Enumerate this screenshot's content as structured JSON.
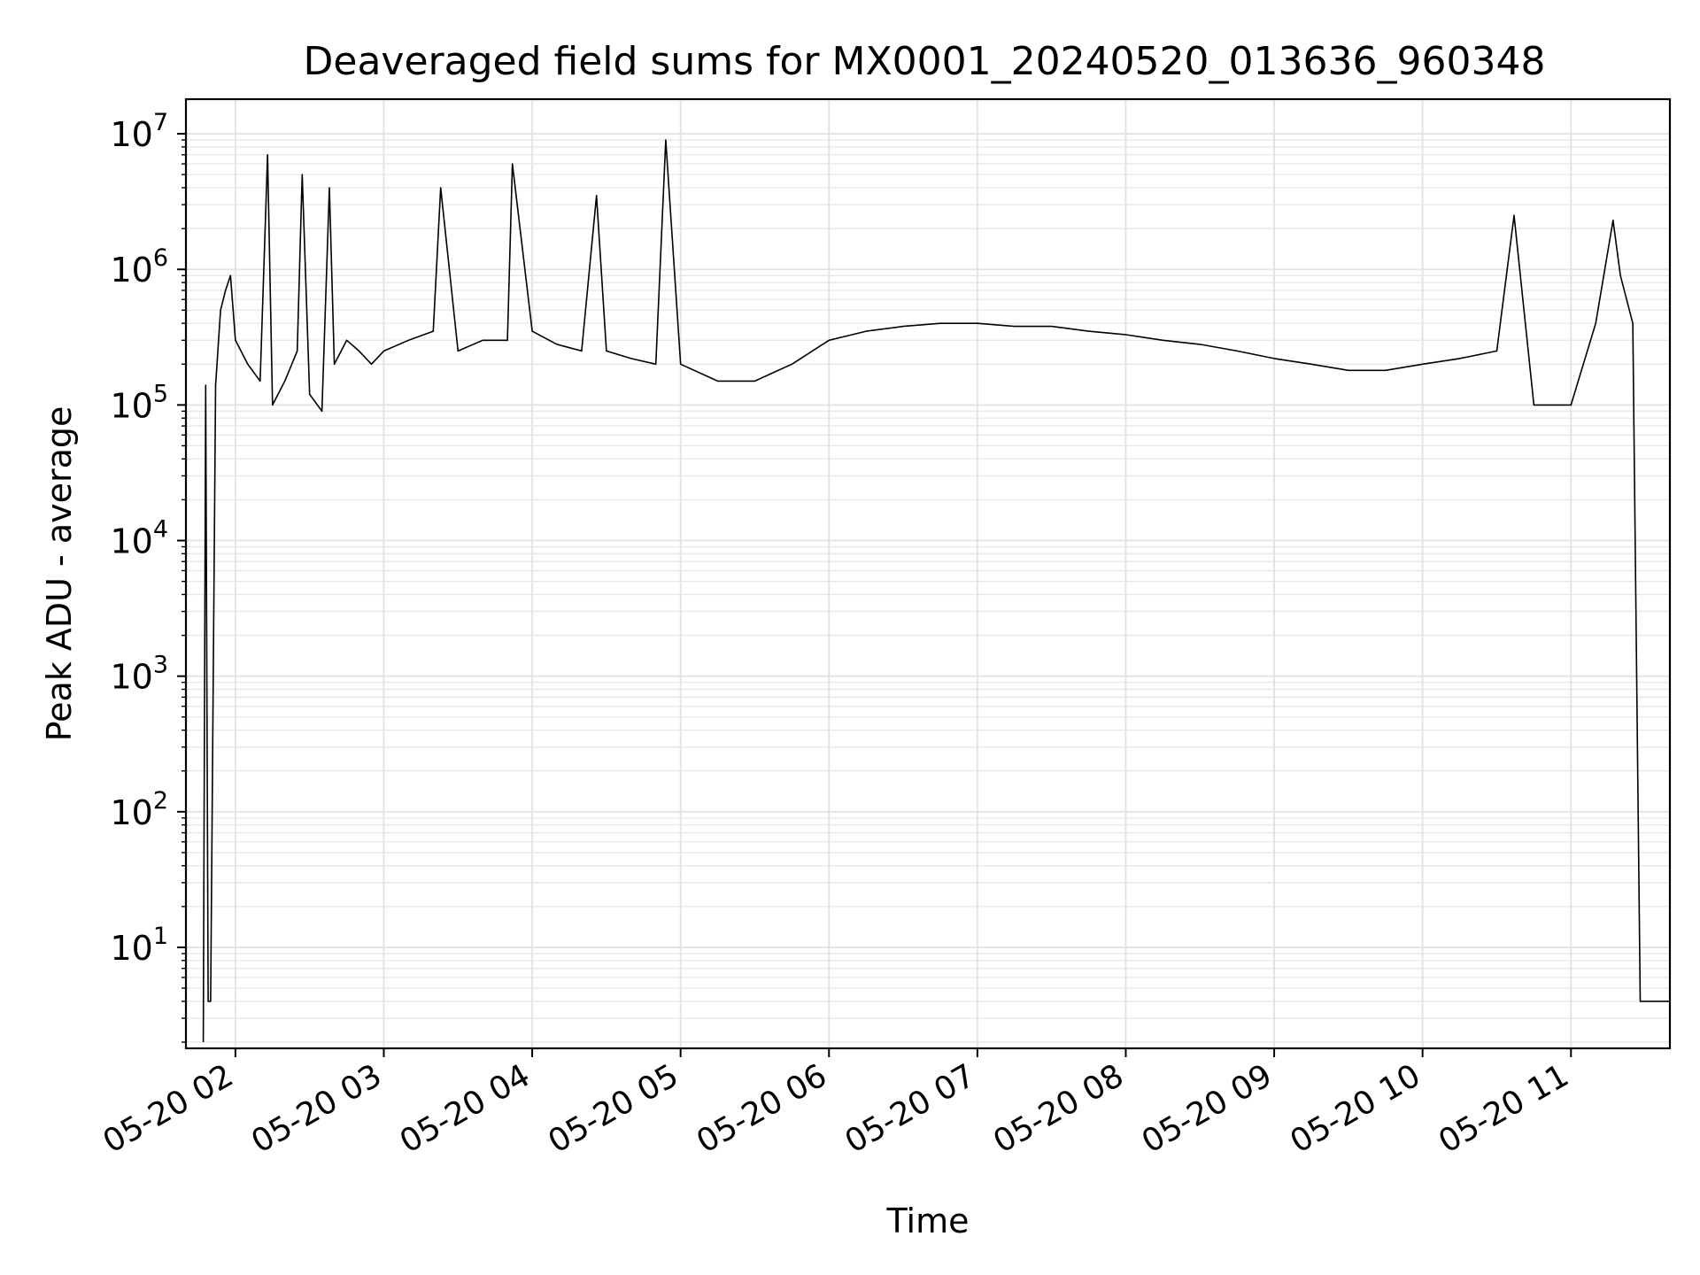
{
  "chart_data": {
    "type": "line",
    "title": "Deaveraged field sums for MX0001_20240520_013636_960348",
    "xlabel": "Time",
    "ylabel": "Peak ADU - average",
    "x_scale": "time",
    "y_scale": "log",
    "xlim": [
      "2024-05-20 01:40",
      "2024-05-20 11:40"
    ],
    "ylim": [
      1.8,
      18000000
    ],
    "grid": true,
    "x_ticks": [
      "2024-05-20 02:00",
      "2024-05-20 03:00",
      "2024-05-20 04:00",
      "2024-05-20 05:00",
      "2024-05-20 06:00",
      "2024-05-20 07:00",
      "2024-05-20 08:00",
      "2024-05-20 09:00",
      "2024-05-20 10:00",
      "2024-05-20 11:00"
    ],
    "x_tick_labels": [
      "05-20 02",
      "05-20 03",
      "05-20 04",
      "05-20 05",
      "05-20 06",
      "05-20 07",
      "05-20 08",
      "05-20 09",
      "05-20 10",
      "05-20 11"
    ],
    "y_ticks": [
      10,
      100,
      1000,
      10000,
      100000,
      1000000,
      10000000
    ],
    "y_tick_bases": [
      "10",
      "10",
      "10",
      "10",
      "10",
      "10",
      "10"
    ],
    "y_tick_exponents": [
      "1",
      "2",
      "3",
      "4",
      "5",
      "6",
      "7"
    ],
    "series": [
      {
        "color": "#000000",
        "x": [
          "2024-05-20 01:47",
          "2024-05-20 01:48",
          "2024-05-20 01:49",
          "2024-05-20 01:50",
          "2024-05-20 01:52",
          "2024-05-20 01:54",
          "2024-05-20 01:56",
          "2024-05-20 01:58",
          "2024-05-20 02:00",
          "2024-05-20 02:05",
          "2024-05-20 02:10",
          "2024-05-20 02:13",
          "2024-05-20 02:15",
          "2024-05-20 02:20",
          "2024-05-20 02:25",
          "2024-05-20 02:27",
          "2024-05-20 02:30",
          "2024-05-20 02:35",
          "2024-05-20 02:38",
          "2024-05-20 02:40",
          "2024-05-20 02:45",
          "2024-05-20 02:50",
          "2024-05-20 02:55",
          "2024-05-20 03:00",
          "2024-05-20 03:10",
          "2024-05-20 03:20",
          "2024-05-20 03:23",
          "2024-05-20 03:30",
          "2024-05-20 03:40",
          "2024-05-20 03:50",
          "2024-05-20 03:52",
          "2024-05-20 04:00",
          "2024-05-20 04:10",
          "2024-05-20 04:20",
          "2024-05-20 04:26",
          "2024-05-20 04:30",
          "2024-05-20 04:40",
          "2024-05-20 04:50",
          "2024-05-20 04:54",
          "2024-05-20 05:00",
          "2024-05-20 05:15",
          "2024-05-20 05:30",
          "2024-05-20 05:45",
          "2024-05-20 06:00",
          "2024-05-20 06:15",
          "2024-05-20 06:30",
          "2024-05-20 06:45",
          "2024-05-20 07:00",
          "2024-05-20 07:15",
          "2024-05-20 07:30",
          "2024-05-20 07:45",
          "2024-05-20 08:00",
          "2024-05-20 08:15",
          "2024-05-20 08:30",
          "2024-05-20 08:45",
          "2024-05-20 09:00",
          "2024-05-20 09:15",
          "2024-05-20 09:30",
          "2024-05-20 09:45",
          "2024-05-20 10:00",
          "2024-05-20 10:15",
          "2024-05-20 10:30",
          "2024-05-20 10:37",
          "2024-05-20 10:45",
          "2024-05-20 11:00",
          "2024-05-20 11:10",
          "2024-05-20 11:17",
          "2024-05-20 11:20",
          "2024-05-20 11:25",
          "2024-05-20 11:28",
          "2024-05-20 11:30",
          "2024-05-20 11:32",
          "2024-05-20 11:40"
        ],
        "y": [
          2,
          140000,
          4,
          4,
          140000,
          500000,
          700000,
          900000,
          300000,
          200000,
          150000,
          7000000,
          100000,
          150000,
          250000,
          5000000,
          120000,
          90000,
          4000000,
          200000,
          300000,
          250000,
          200000,
          250000,
          300000,
          350000,
          4000000,
          250000,
          300000,
          300000,
          6000000,
          350000,
          280000,
          250000,
          3500000,
          250000,
          220000,
          200000,
          9000000,
          200000,
          150000,
          150000,
          200000,
          300000,
          350000,
          380000,
          400000,
          400000,
          380000,
          380000,
          350000,
          330000,
          300000,
          280000,
          250000,
          220000,
          200000,
          180000,
          180000,
          200000,
          220000,
          250000,
          2500000,
          100000,
          100000,
          400000,
          2300000,
          900000,
          400000,
          4,
          4,
          4,
          4
        ]
      }
    ]
  }
}
